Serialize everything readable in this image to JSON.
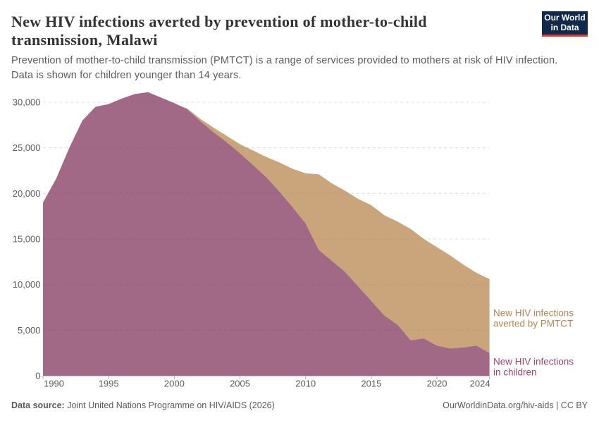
{
  "header": {
    "title_line1": "New HIV infections averted by prevention of mother-to-child",
    "title_line2": "transmission, Malawi",
    "subtitle_line1": "Prevention of mother-to-child transmission (PMTCT) is a range of services provided to mothers at risk of HIV infection.",
    "subtitle_line2": "Data is shown for children younger than 14 years."
  },
  "logo": {
    "line1": "Our World",
    "line2": "in Data",
    "background_color": "#102A4C",
    "accent_color": "#E23D34"
  },
  "chart_data": {
    "type": "area",
    "stacked": true,
    "title": "New HIV infections averted by prevention of mother-to-child transmission, Malawi",
    "xlabel": "",
    "ylabel": "",
    "xlim": [
      1990,
      2024
    ],
    "ylim": [
      0,
      30000
    ],
    "grid": "horizontal-dashed",
    "x": [
      1990,
      1991,
      1992,
      1993,
      1994,
      1995,
      1996,
      1997,
      1998,
      1999,
      2000,
      2001,
      2002,
      2003,
      2004,
      2005,
      2006,
      2007,
      2008,
      2009,
      2010,
      2011,
      2012,
      2013,
      2014,
      2015,
      2016,
      2017,
      2018,
      2019,
      2020,
      2021,
      2022,
      2023,
      2024
    ],
    "series": [
      {
        "name": "New HIV infections in children",
        "fill_color": "rgba(123,42,82,0.7)",
        "label_color": "#9A4571",
        "values": [
          19000,
          21600,
          25000,
          28000,
          29500,
          29800,
          30400,
          30900,
          31100,
          30500,
          29900,
          29200,
          27900,
          26700,
          25600,
          24400,
          23100,
          21800,
          20200,
          18500,
          16700,
          13800,
          12600,
          11400,
          9800,
          8200,
          6600,
          5600,
          3900,
          4100,
          3300,
          3000,
          3100,
          3300,
          2500
        ]
      },
      {
        "name": "New HIV infections averted by PMTCT",
        "fill_color": "rgba(179,126,65,0.7)",
        "label_color": "#B58550",
        "values": [
          0,
          0,
          0,
          0,
          0,
          0,
          0,
          0,
          0,
          0,
          0,
          100,
          250,
          500,
          700,
          1000,
          1600,
          2200,
          3200,
          4200,
          5500,
          8300,
          8500,
          8900,
          9600,
          10500,
          11000,
          11300,
          12200,
          10900,
          10800,
          10200,
          9100,
          8000,
          8100
        ]
      }
    ],
    "xticks": [
      1990,
      1995,
      2000,
      2005,
      2010,
      2015,
      2020,
      2024
    ],
    "yticks": [
      0,
      5000,
      10000,
      15000,
      20000,
      25000,
      30000
    ],
    "legend_position": "right-edge-labels"
  },
  "annotations": {
    "averted_label_line1": "New HIV infections",
    "averted_label_line2": "averted by PMTCT",
    "children_label_line1": "New HIV infections",
    "children_label_line2": "in children"
  },
  "footer": {
    "source_label": "Data source:",
    "source_text": " Joint United Nations Programme on HIV/AIDS (2026)",
    "link_text": "OurWorldinData.org/hiv-aids | CC BY"
  }
}
